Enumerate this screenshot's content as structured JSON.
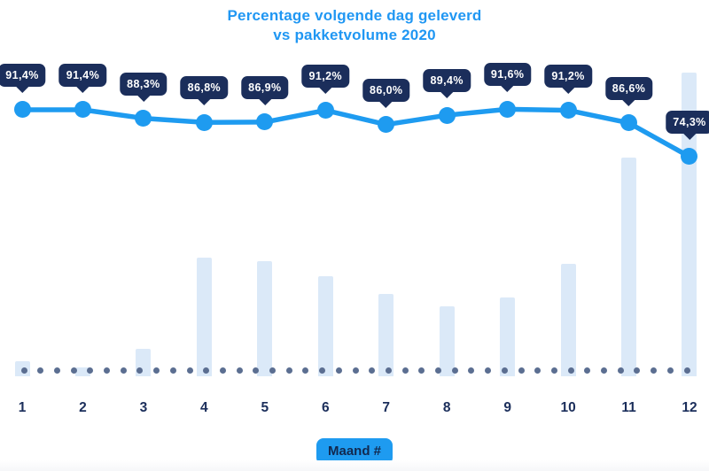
{
  "title": {
    "line1": "Percentage volgende dag geleverd",
    "line2": "vs pakketvolume 2020"
  },
  "x_axis": {
    "months": [
      "1",
      "2",
      "3",
      "4",
      "5",
      "6",
      "7",
      "8",
      "9",
      "10",
      "11",
      "12"
    ],
    "badge_label": "Maand #"
  },
  "chart_data": {
    "type": "line",
    "title": "Percentage volgende dag geleverd vs pakketvolume 2020",
    "x": [
      1,
      2,
      3,
      4,
      5,
      6,
      7,
      8,
      9,
      10,
      11,
      12
    ],
    "xlabel": "Maand #",
    "grid": false,
    "legend": "none",
    "series": [
      {
        "name": "Percentage volgende dag geleverd",
        "type": "line",
        "unit": "%",
        "values": [
          91.4,
          91.4,
          88.3,
          86.8,
          86.9,
          91.2,
          86.0,
          89.4,
          91.6,
          91.2,
          86.6,
          74.3
        ],
        "labels": [
          "91,4%",
          "91,4%",
          "88,3%",
          "86,8%",
          "86,9%",
          "91,2%",
          "86,0%",
          "89,4%",
          "91,6%",
          "91,2%",
          "86,6%",
          "74,3%"
        ]
      },
      {
        "name": "Pakketvolume 2020",
        "type": "bar",
        "unit": "relative volume, % of max",
        "values": [
          5,
          3,
          9,
          39,
          38,
          33,
          27,
          23,
          26,
          37,
          72,
          100
        ]
      }
    ]
  },
  "colors": {
    "line": "#1e9bf0",
    "marker": "#1e9bf0",
    "tooltip_bg": "#1b2e5b",
    "tooltip_text": "#ffffff",
    "bar_fill": "#dbe9f8",
    "baseline_dot": "#5b6e91",
    "axis_text": "#1b2e5b",
    "badge_bg": "#1e9bf0",
    "badge_text": "#12294f",
    "title_text": "#2097f3",
    "footer_strip": "#f6f7f9"
  }
}
